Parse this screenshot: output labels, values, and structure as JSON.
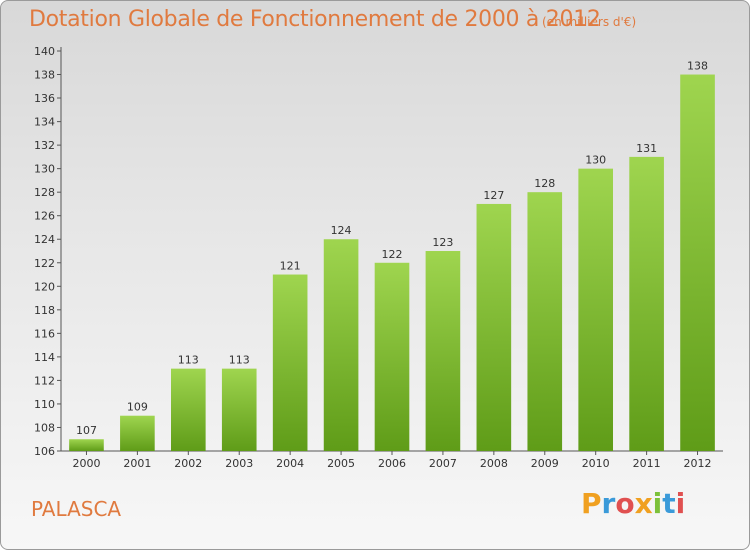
{
  "header": {
    "title": "Dotation Globale de Fonctionnement de 2000 à 2012",
    "subtitle": "(en milliers d'€)"
  },
  "footer": {
    "town": "PALASCA",
    "logo": "Proxiti"
  },
  "colors": {
    "title": "#e07a3f",
    "bar_top": "#9fd54f",
    "bar_bottom": "#5f9c18"
  },
  "chart_data": {
    "type": "bar",
    "title": "Dotation Globale de Fonctionnement de 2000 à 2012",
    "subtitle": "(en milliers d'€)",
    "categories": [
      "2000",
      "2001",
      "2002",
      "2003",
      "2004",
      "2005",
      "2006",
      "2007",
      "2008",
      "2009",
      "2010",
      "2011",
      "2012"
    ],
    "values": [
      107,
      109,
      113,
      113,
      121,
      124,
      122,
      123,
      127,
      128,
      130,
      131,
      138
    ],
    "ylim": [
      106,
      140
    ],
    "ytick_step": 2,
    "grid": false,
    "data_labels": true
  }
}
